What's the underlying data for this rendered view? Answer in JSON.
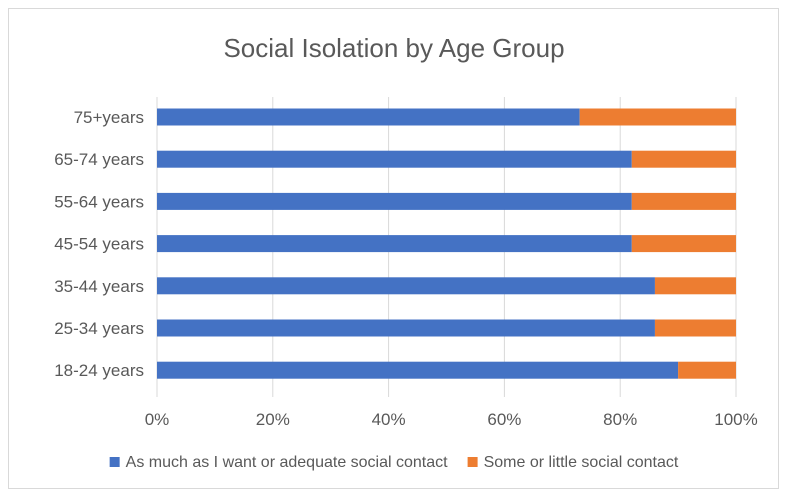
{
  "chart_data": {
    "type": "bar",
    "orientation": "horizontal",
    "stacked": "100%",
    "title": "Social Isolation by Age Group",
    "categories": [
      "75+years",
      "65-74 years",
      "55-64 years",
      "45-54 years",
      "35-44 years",
      "25-34 years",
      "18-24 years"
    ],
    "series": [
      {
        "name": "As much as I want or adequate social contact",
        "color": "#4472c4",
        "values": [
          73,
          82,
          82,
          82,
          86,
          86,
          90
        ]
      },
      {
        "name": "Some or little social contact",
        "color": "#ed7d31",
        "values": [
          27,
          18,
          18,
          18,
          14,
          14,
          10
        ]
      }
    ],
    "xlim": [
      0,
      100
    ],
    "xticks": [
      "0%",
      "20%",
      "40%",
      "60%",
      "80%",
      "100%"
    ],
    "grid": true,
    "legend_position": "bottom"
  }
}
